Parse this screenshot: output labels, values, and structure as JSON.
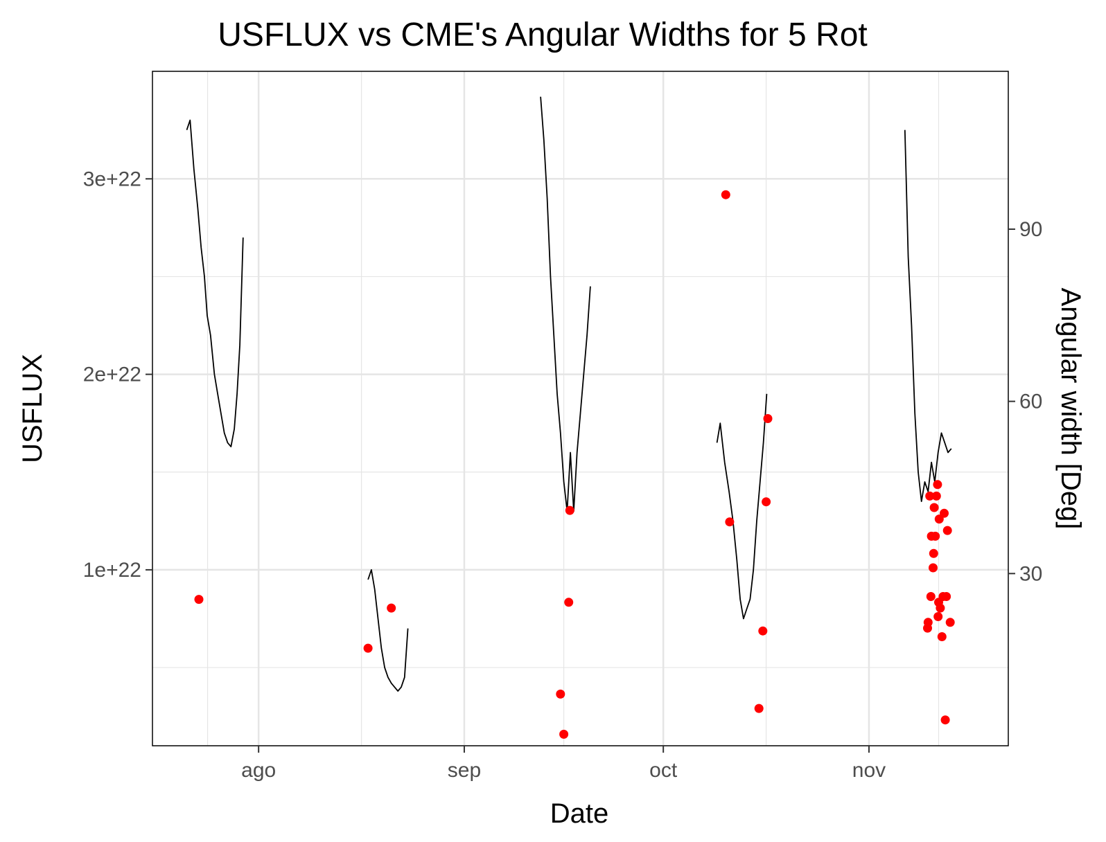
{
  "chart_data": {
    "type": "line",
    "title": "USFLUX vs  CME's Angular Widths for 5 Rot",
    "xlabel": "Date",
    "ylabel": "USFLUX",
    "y2label": "Angular width [Deg]",
    "x_ticks": [
      {
        "date": "2012-08-01",
        "label": "ago"
      },
      {
        "date": "2012-09-01",
        "label": "sep"
      },
      {
        "date": "2012-10-01",
        "label": "oct"
      },
      {
        "date": "2012-11-01",
        "label": "nov"
      }
    ],
    "xlim": [
      "2012-07-16",
      "2012-11-22"
    ],
    "ylim": [
      1e+21,
      3.55e+22
    ],
    "y_ticks": [
      {
        "value": 1e+22,
        "label": "1e+22"
      },
      {
        "value": 2e+22,
        "label": "2e+22"
      },
      {
        "value": 3e+22,
        "label": "3e+22"
      }
    ],
    "y2lim": [
      0,
      117.5
    ],
    "y2_ticks": [
      {
        "value": 30,
        "label": "30"
      },
      {
        "value": 60,
        "label": "60"
      },
      {
        "value": 90,
        "label": "90"
      }
    ],
    "grid": true,
    "colors": {
      "usflux": "#000000",
      "cme": "#ff0000",
      "grid": "#e5e5e5"
    },
    "series": [
      {
        "axis": "left",
        "style": "line",
        "segments": [
          [
            [
              "2012-07-21T04:00",
              3.25e+22
            ],
            [
              "2012-07-21T16:00",
              3.3e+22
            ],
            [
              "2012-07-22T06:00",
              3.05e+22
            ],
            [
              "2012-07-22T20:00",
              2.85e+22
            ],
            [
              "2012-07-23T08:00",
              2.65e+22
            ],
            [
              "2012-07-23T20:00",
              2.5e+22
            ],
            [
              "2012-07-24T06:00",
              2.3e+22
            ],
            [
              "2012-07-24T18:00",
              2.2e+22
            ],
            [
              "2012-07-25T08:00",
              2e+22
            ],
            [
              "2012-07-25T20:00",
              1.9e+22
            ],
            [
              "2012-07-26T08:00",
              1.8e+22
            ],
            [
              "2012-07-26T20:00",
              1.7e+22
            ],
            [
              "2012-07-27T08:00",
              1.65e+22
            ],
            [
              "2012-07-27T20:00",
              1.63e+22
            ],
            [
              "2012-07-28T08:00",
              1.72e+22
            ],
            [
              "2012-07-28T18:00",
              1.9e+22
            ],
            [
              "2012-07-29T04:00",
              2.15e+22
            ],
            [
              "2012-07-29T16:00",
              2.7e+22
            ]
          ],
          [
            [
              "2012-08-17T12:00",
              9.5e+21
            ],
            [
              "2012-08-18T00:00",
              1e+22
            ],
            [
              "2012-08-18T12:00",
              9e+21
            ],
            [
              "2012-08-19T00:00",
              7.5e+21
            ],
            [
              "2012-08-19T12:00",
              6e+21
            ],
            [
              "2012-08-20T00:00",
              5e+21
            ],
            [
              "2012-08-20T12:00",
              4.5e+21
            ],
            [
              "2012-08-21T00:00",
              4.2e+21
            ],
            [
              "2012-08-21T12:00",
              4e+21
            ],
            [
              "2012-08-22T00:00",
              3.8e+21
            ],
            [
              "2012-08-22T12:00",
              4e+21
            ],
            [
              "2012-08-23T00:00",
              4.5e+21
            ],
            [
              "2012-08-23T12:00",
              7e+21
            ]
          ],
          [
            [
              "2012-09-12T12:00",
              3.42e+22
            ],
            [
              "2012-09-13T00:00",
              3.2e+22
            ],
            [
              "2012-09-13T12:00",
              2.9e+22
            ],
            [
              "2012-09-14T00:00",
              2.5e+22
            ],
            [
              "2012-09-14T12:00",
              2.2e+22
            ],
            [
              "2012-09-15T00:00",
              1.9e+22
            ],
            [
              "2012-09-15T12:00",
              1.7e+22
            ],
            [
              "2012-09-16T00:00",
              1.45e+22
            ],
            [
              "2012-09-16T12:00",
              1.3e+22
            ],
            [
              "2012-09-17T00:00",
              1.6e+22
            ],
            [
              "2012-09-17T12:00",
              1.3e+22
            ],
            [
              "2012-09-18T00:00",
              1.6e+22
            ],
            [
              "2012-09-18T12:00",
              1.8e+22
            ],
            [
              "2012-09-19T00:00",
              2e+22
            ],
            [
              "2012-09-19T12:00",
              2.2e+22
            ],
            [
              "2012-09-20T00:00",
              2.45e+22
            ]
          ],
          [
            [
              "2012-10-09T02:00",
              1.65e+22
            ],
            [
              "2012-10-09T14:00",
              1.75e+22
            ],
            [
              "2012-10-10T06:00",
              1.55e+22
            ],
            [
              "2012-10-10T22:00",
              1.4e+22
            ],
            [
              "2012-10-11T12:00",
              1.25e+22
            ],
            [
              "2012-10-12T02:00",
              1.05e+22
            ],
            [
              "2012-10-12T14:00",
              8.5e+21
            ],
            [
              "2012-10-13T02:00",
              7.5e+21
            ],
            [
              "2012-10-13T14:00",
              8e+21
            ],
            [
              "2012-10-14T02:00",
              8.5e+21
            ],
            [
              "2012-10-14T14:00",
              1e+22
            ],
            [
              "2012-10-15T02:00",
              1.25e+22
            ],
            [
              "2012-10-15T14:00",
              1.45e+22
            ],
            [
              "2012-10-16T02:00",
              1.65e+22
            ],
            [
              "2012-10-16T14:00",
              1.9e+22
            ]
          ],
          [
            [
              "2012-11-06T10:00",
              3.25e+22
            ],
            [
              "2012-11-06T22:00",
              2.6e+22
            ],
            [
              "2012-11-07T10:00",
              2.25e+22
            ],
            [
              "2012-11-07T22:00",
              1.8e+22
            ],
            [
              "2012-11-08T10:00",
              1.5e+22
            ],
            [
              "2012-11-08T22:00",
              1.35e+22
            ],
            [
              "2012-11-09T10:00",
              1.45e+22
            ],
            [
              "2012-11-09T22:00",
              1.4e+22
            ],
            [
              "2012-11-10T10:00",
              1.55e+22
            ],
            [
              "2012-11-10T22:00",
              1.45e+22
            ],
            [
              "2012-11-11T10:00",
              1.6e+22
            ],
            [
              "2012-11-11T22:00",
              1.7e+22
            ],
            [
              "2012-11-12T10:00",
              1.65e+22
            ],
            [
              "2012-11-12T22:00",
              1.6e+22
            ],
            [
              "2012-11-13T10:00",
              1.62e+22
            ]
          ]
        ]
      },
      {
        "axis": "right",
        "style": "points",
        "points": [
          [
            "2012-07-23T00:00",
            25.5
          ],
          [
            "2012-08-17T12:00",
            17.0
          ],
          [
            "2012-08-21T00:00",
            24.0
          ],
          [
            "2012-09-15T12:00",
            9.0
          ],
          [
            "2012-09-16T00:00",
            2.0
          ],
          [
            "2012-09-16T18:00",
            25.0
          ],
          [
            "2012-09-16T22:00",
            41.0
          ],
          [
            "2012-10-10T10:00",
            96.0
          ],
          [
            "2012-10-11T00:00",
            39.0
          ],
          [
            "2012-10-15T10:00",
            6.5
          ],
          [
            "2012-10-16T00:00",
            20.0
          ],
          [
            "2012-10-16T12:00",
            42.5
          ],
          [
            "2012-10-16T18:00",
            57.0
          ],
          [
            "2012-11-09T20:00",
            20.5
          ],
          [
            "2012-11-09T22:00",
            21.5
          ],
          [
            "2012-11-10T04:00",
            43.5
          ],
          [
            "2012-11-10T08:00",
            26.0
          ],
          [
            "2012-11-10T10:00",
            36.5
          ],
          [
            "2012-11-10T16:00",
            31.0
          ],
          [
            "2012-11-10T18:00",
            33.5
          ],
          [
            "2012-11-10T20:00",
            41.5
          ],
          [
            "2012-11-11T00:00",
            36.5
          ],
          [
            "2012-11-11T04:00",
            43.5
          ],
          [
            "2012-11-11T08:00",
            45.5
          ],
          [
            "2012-11-11T10:00",
            22.5
          ],
          [
            "2012-11-11T12:00",
            25.0
          ],
          [
            "2012-11-11T14:00",
            39.5
          ],
          [
            "2012-11-11T18:00",
            24.0
          ],
          [
            "2012-11-12T00:00",
            19.0
          ],
          [
            "2012-11-12T04:00",
            26.0
          ],
          [
            "2012-11-12T08:00",
            40.5
          ],
          [
            "2012-11-12T12:00",
            4.5
          ],
          [
            "2012-11-12T16:00",
            26.0
          ],
          [
            "2012-11-12T20:00",
            37.5
          ],
          [
            "2012-11-13T06:00",
            21.5
          ]
        ]
      }
    ]
  }
}
